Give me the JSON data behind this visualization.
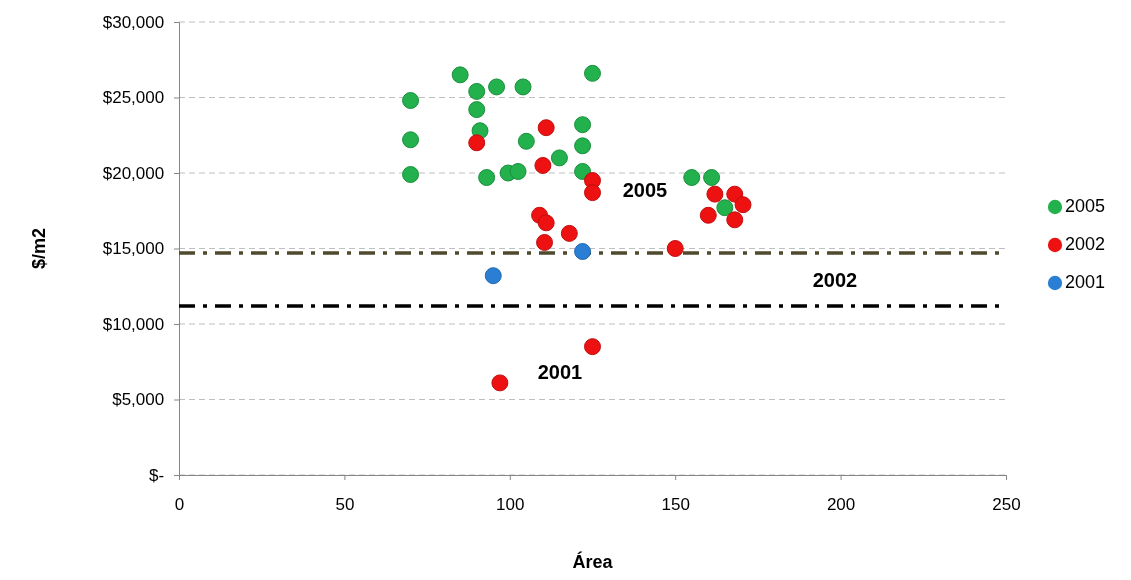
{
  "chart_data": {
    "type": "scatter",
    "xlabel": "Área",
    "ylabel": "$/m2",
    "xlim": [
      0,
      250
    ],
    "xticks": [
      0,
      50,
      100,
      150,
      200,
      250
    ],
    "ylim": [
      0,
      30000
    ],
    "yticks": [
      {
        "value": 0,
        "label": "$-"
      },
      {
        "value": 5000,
        "label": "$5,000"
      },
      {
        "value": 10000,
        "label": "$10,000"
      },
      {
        "value": 15000,
        "label": "$15,000"
      },
      {
        "value": 20000,
        "label": "$20,000"
      },
      {
        "value": 25000,
        "label": "$25,000"
      },
      {
        "value": 30000,
        "label": "$30,000"
      }
    ],
    "grid": "y",
    "legend": "right",
    "marker": "circle",
    "series": [
      {
        "name": "2005",
        "color": "#22b14c",
        "x": [
          85,
          70,
          70,
          70,
          90,
          96,
          104,
          125,
          90,
          91,
          105,
          122,
          122,
          115,
          93,
          99.5,
          102.5,
          122,
          155,
          161,
          165
        ],
        "values": [
          26500,
          24800,
          22200,
          19900,
          25400,
          25700,
          25700,
          26600,
          24200,
          22800,
          22100,
          23200,
          21800,
          21000,
          19700,
          20000,
          20100,
          20100,
          19700,
          19700,
          17700
        ]
      },
      {
        "name": "2002",
        "color": "#ee1111",
        "x": [
          90,
          111,
          110,
          125,
          125,
          109,
          111,
          118,
          110.5,
          160,
          162,
          168,
          170.5,
          168,
          150,
          97,
          125
        ],
        "values": [
          22000,
          23000,
          20500,
          19500,
          18700,
          17200,
          16700,
          16000,
          15400,
          17200,
          18600,
          18600,
          17900,
          16900,
          15000,
          6100,
          8500
        ]
      },
      {
        "name": "2001",
        "color": "#2a7fd4",
        "x": [
          95,
          122
        ],
        "values": [
          13200,
          14800
        ]
      }
    ],
    "ref_lines": [
      {
        "axis": "y",
        "value": 14700,
        "color": "#4f4a2e",
        "line_style": "dashed"
      },
      {
        "axis": "y",
        "value": 11200,
        "color": "#000000",
        "line_style": "dashed"
      }
    ],
    "annotations": [
      "2005",
      "2002",
      "2001"
    ]
  }
}
